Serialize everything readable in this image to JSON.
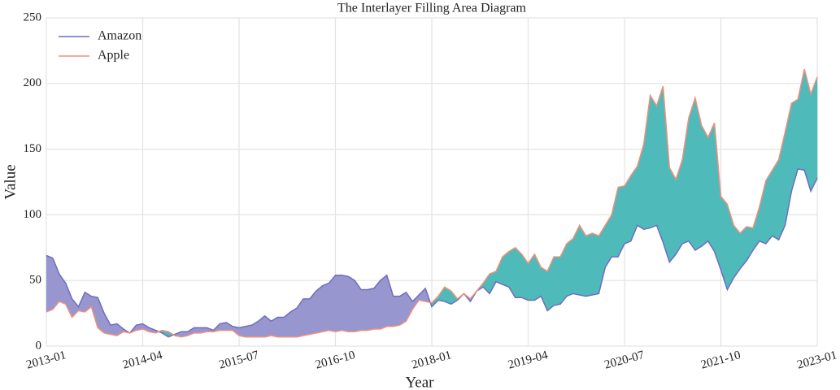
{
  "chart_data": {
    "type": "fill_between",
    "title": "The Interlayer Filling Area Diagram",
    "x_label": "Year",
    "y_label": "Value",
    "x": [
      "2013-01",
      "2013-02",
      "2013-03",
      "2013-04",
      "2013-05",
      "2013-06",
      "2013-07",
      "2013-08",
      "2013-09",
      "2013-10",
      "2013-11",
      "2013-12",
      "2014-01",
      "2014-02",
      "2014-03",
      "2014-04",
      "2014-05",
      "2014-06",
      "2014-07",
      "2014-08",
      "2014-09",
      "2014-10",
      "2014-11",
      "2014-12",
      "2015-01",
      "2015-02",
      "2015-03",
      "2015-04",
      "2015-05",
      "2015-06",
      "2015-07",
      "2015-08",
      "2015-09",
      "2015-10",
      "2015-11",
      "2015-12",
      "2016-01",
      "2016-02",
      "2016-03",
      "2016-04",
      "2016-05",
      "2016-06",
      "2016-07",
      "2016-08",
      "2016-09",
      "2016-10",
      "2016-11",
      "2016-12",
      "2017-01",
      "2017-02",
      "2017-03",
      "2017-04",
      "2017-05",
      "2017-06",
      "2017-07",
      "2017-08",
      "2017-09",
      "2017-10",
      "2017-11",
      "2017-12",
      "2018-01",
      "2018-02",
      "2018-03",
      "2018-04",
      "2018-05",
      "2018-06",
      "2018-07",
      "2018-08",
      "2018-09",
      "2018-10",
      "2018-11",
      "2018-12",
      "2019-01",
      "2019-02",
      "2019-03",
      "2019-04",
      "2019-05",
      "2019-06",
      "2019-07",
      "2019-08",
      "2019-09",
      "2019-10",
      "2019-11",
      "2019-12",
      "2020-01",
      "2020-02",
      "2020-03",
      "2020-04",
      "2020-05",
      "2020-06",
      "2020-07",
      "2020-08",
      "2020-09",
      "2020-10",
      "2020-11",
      "2020-12",
      "2021-01",
      "2021-02",
      "2021-03",
      "2021-04",
      "2021-05",
      "2021-06",
      "2021-07",
      "2021-08",
      "2021-09",
      "2021-10",
      "2021-11",
      "2021-12",
      "2022-01",
      "2022-02",
      "2022-03",
      "2022-04",
      "2022-05",
      "2022-06",
      "2022-07",
      "2022-08",
      "2022-09",
      "2022-10",
      "2022-11",
      "2022-12",
      "2023-01"
    ],
    "series": [
      {
        "name": "Amazon",
        "color": "#6f6dbf",
        "fill_color": "#9896cf",
        "values": [
          69,
          67,
          55,
          48,
          36,
          30,
          41,
          38,
          37,
          25,
          16,
          17,
          13,
          10,
          16,
          17,
          14,
          12,
          10,
          7,
          9,
          11,
          11,
          14,
          14,
          14,
          12,
          17,
          18,
          15,
          14,
          15,
          16,
          19,
          23,
          19,
          22,
          22,
          26,
          29,
          36,
          36,
          42,
          46,
          48,
          54,
          54,
          53,
          50,
          43,
          43,
          44,
          50,
          54,
          38,
          38,
          41,
          34,
          39,
          44,
          30,
          35,
          34,
          32,
          35,
          40,
          34,
          42,
          45,
          40,
          49,
          47,
          45,
          37,
          37,
          35,
          35,
          38,
          27,
          31,
          32,
          38,
          40,
          39,
          38,
          39,
          40,
          60,
          68,
          68,
          78,
          80,
          92,
          89,
          90,
          92,
          79,
          64,
          70,
          78,
          80,
          73,
          76,
          80,
          72,
          58,
          43,
          52,
          59,
          65,
          73,
          80,
          78,
          84,
          81,
          92,
          118,
          135,
          134,
          118,
          128
        ]
      },
      {
        "name": "Apple",
        "color": "#f0907a",
        "fill_color": "#4fbaba",
        "values": [
          26,
          28,
          34,
          32,
          22,
          27,
          26,
          30,
          14,
          10,
          9,
          8,
          11,
          10,
          12,
          13,
          11,
          10,
          12,
          11,
          8,
          7,
          8,
          10,
          10,
          11,
          11,
          12,
          12,
          12,
          8,
          7,
          7,
          7,
          7,
          8,
          7,
          7,
          7,
          7,
          8,
          9,
          10,
          11,
          12,
          11,
          12,
          11,
          11,
          12,
          12,
          13,
          13,
          15,
          15,
          16,
          19,
          28,
          35,
          34,
          33,
          38,
          45,
          42,
          36,
          40,
          36,
          42,
          48,
          55,
          57,
          68,
          72,
          75,
          70,
          63,
          70,
          60,
          57,
          68,
          68,
          78,
          82,
          92,
          84,
          86,
          84,
          92,
          100,
          121,
          122,
          130,
          137,
          154,
          191,
          183,
          198,
          136,
          127,
          142,
          174,
          189,
          168,
          159,
          170,
          114,
          108,
          92,
          86,
          91,
          90,
          106,
          126,
          134,
          142,
          163,
          185,
          188,
          211,
          192,
          205
        ]
      }
    ],
    "xlim": [
      "2013-01",
      "2023-01"
    ],
    "xticks": [
      "2013-01",
      "2014-04",
      "2015-07",
      "2016-10",
      "2018-01",
      "2019-04",
      "2020-07",
      "2021-10",
      "2023-01"
    ],
    "ylim": [
      0,
      250
    ],
    "yticks": [
      0,
      50,
      100,
      150,
      200,
      250
    ],
    "grid": true,
    "legend": "upper left"
  }
}
